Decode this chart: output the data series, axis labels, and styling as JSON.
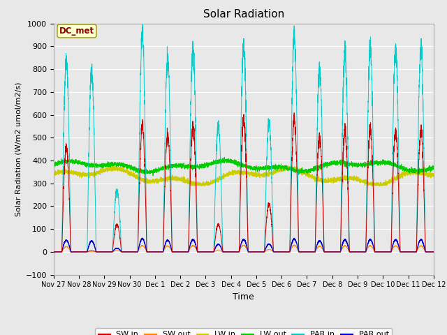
{
  "title": "Solar Radiation",
  "xlabel": "Time",
  "ylabel": "Solar Radiation (W/m2 umol/m2/s)",
  "ylim": [
    -100,
    1000
  ],
  "annotation_label": "DC_met",
  "legend": [
    "SW in",
    "SW out",
    "LW in",
    "LW out",
    "PAR in",
    "PAR out"
  ],
  "line_colors": [
    "#cc0000",
    "#ff8800",
    "#cccc00",
    "#00cc00",
    "#00cccc",
    "#0000cc"
  ],
  "fig_bg": "#e8e8e8",
  "plot_bg": "#e8e8e8",
  "n_days": 15,
  "points_per_day": 288,
  "sw_day_amps": [
    460,
    5,
    120,
    550,
    510,
    555,
    120,
    580,
    210,
    575,
    505,
    530,
    535,
    530,
    530
  ],
  "par_day_amps": [
    840,
    790,
    270,
    950,
    845,
    895,
    555,
    900,
    570,
    935,
    805,
    870,
    890,
    890,
    890
  ],
  "lw_in_base": 330,
  "lw_out_base": 375,
  "tick_labels": [
    "Nov 27",
    "Nov 28",
    "Nov 29",
    "Nov 30",
    "Dec 1",
    "Dec 2",
    "Dec 3",
    "Dec 4",
    "Dec 5",
    "Dec 6",
    "Dec 7",
    "Dec 8",
    "Dec 9",
    "Dec 10",
    "Dec 11",
    "Dec 12"
  ],
  "yticks": [
    -100,
    0,
    100,
    200,
    300,
    400,
    500,
    600,
    700,
    800,
    900,
    1000
  ]
}
